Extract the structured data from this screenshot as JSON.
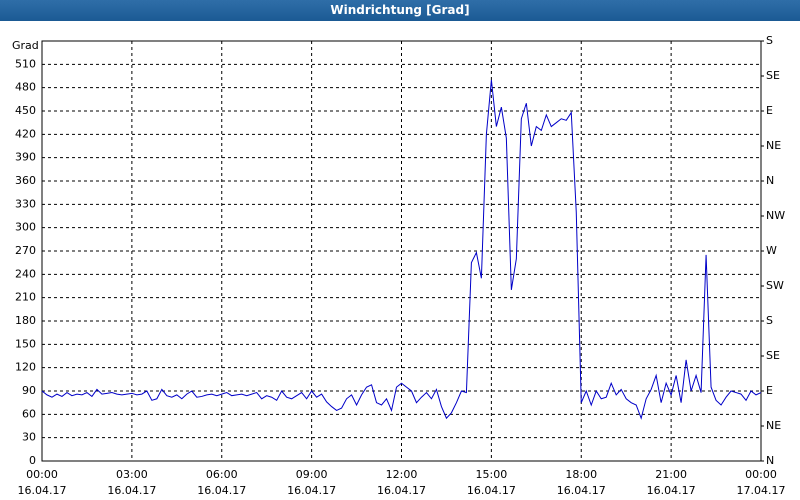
{
  "chart_data": {
    "type": "line",
    "title": "Windrichtung [Grad]",
    "y_label": "Grad",
    "x": [
      0,
      10,
      20,
      30,
      40,
      50,
      60,
      70,
      80,
      90,
      100,
      110,
      120,
      130,
      140,
      150,
      160,
      170,
      180,
      190,
      200,
      210,
      220,
      230,
      240,
      250,
      260,
      270,
      280,
      290,
      300,
      310,
      320,
      330,
      340,
      350,
      360,
      370,
      380,
      390,
      400,
      410,
      420,
      430,
      440,
      450,
      460,
      470,
      480,
      490,
      500,
      510,
      520,
      530,
      540,
      550,
      560,
      570,
      580,
      590,
      600,
      610,
      620,
      630,
      640,
      650,
      660,
      670,
      680,
      690,
      700,
      710,
      720,
      730,
      740,
      750,
      760,
      770,
      780,
      790,
      800,
      810,
      820,
      830,
      840,
      850,
      860,
      870,
      880,
      890,
      900,
      910,
      920,
      930,
      940,
      950,
      960,
      970,
      980,
      990,
      1000,
      1010,
      1020,
      1030,
      1040,
      1050,
      1060,
      1070,
      1080,
      1090,
      1100,
      1110,
      1120,
      1130,
      1140,
      1150,
      1160,
      1170,
      1180,
      1190,
      1200,
      1210,
      1220,
      1230,
      1240,
      1250,
      1260,
      1270,
      1280,
      1290,
      1300,
      1310,
      1320,
      1330,
      1340,
      1350,
      1360,
      1370,
      1380,
      1390,
      1400,
      1410,
      1420,
      1430,
      1440
    ],
    "series": [
      {
        "name": "Windrichtung",
        "color": "#0000c8",
        "values": [
          90,
          85,
          82,
          86,
          83,
          88,
          84,
          86,
          85,
          88,
          83,
          92,
          86,
          87,
          88,
          86,
          85,
          86,
          87,
          85,
          86,
          90,
          78,
          80,
          92,
          84,
          82,
          85,
          80,
          86,
          90,
          82,
          83,
          85,
          86,
          84,
          86,
          88,
          84,
          85,
          86,
          84,
          86,
          88,
          80,
          84,
          82,
          78,
          90,
          82,
          80,
          84,
          88,
          80,
          90,
          82,
          86,
          76,
          70,
          65,
          68,
          80,
          85,
          72,
          85,
          95,
          98,
          75,
          72,
          80,
          65,
          95,
          100,
          95,
          90,
          75,
          82,
          88,
          80,
          92,
          70,
          55,
          62,
          75,
          90,
          88,
          255,
          268,
          235,
          420,
          490,
          430,
          455,
          415,
          220,
          260,
          440,
          460,
          405,
          430,
          425,
          445,
          430,
          435,
          440,
          438,
          448,
          320,
          75,
          90,
          72,
          90,
          80,
          82,
          100,
          85,
          92,
          80,
          75,
          72,
          55,
          80,
          92,
          110,
          75,
          100,
          85,
          110,
          75,
          130,
          90,
          110,
          88,
          265,
          95,
          78,
          72,
          82,
          90,
          88,
          86,
          78,
          90,
          85,
          88
        ]
      }
    ],
    "xlim": [
      0,
      1440
    ],
    "xticks": [
      {
        "value": 0,
        "label": "00:00",
        "date": "16.04.17"
      },
      {
        "value": 180,
        "label": "03:00",
        "date": "16.04.17"
      },
      {
        "value": 360,
        "label": "06:00",
        "date": "16.04.17"
      },
      {
        "value": 540,
        "label": "09:00",
        "date": "16.04.17"
      },
      {
        "value": 720,
        "label": "12:00",
        "date": "16.04.17"
      },
      {
        "value": 900,
        "label": "15:00",
        "date": "16.04.17"
      },
      {
        "value": 1080,
        "label": "18:00",
        "date": "16.04.17"
      },
      {
        "value": 1260,
        "label": "21:00",
        "date": "16.04.17"
      },
      {
        "value": 1440,
        "label": "00:00",
        "date": "17.04.17"
      }
    ],
    "ylim": [
      0,
      540
    ],
    "yticks": [
      0,
      30,
      60,
      90,
      120,
      150,
      180,
      210,
      240,
      270,
      300,
      330,
      360,
      390,
      420,
      450,
      480,
      510
    ],
    "y2lim": [
      0,
      540
    ],
    "y2ticks": [
      {
        "value": 0,
        "label": "N"
      },
      {
        "value": 45,
        "label": "NE"
      },
      {
        "value": 90,
        "label": "E"
      },
      {
        "value": 135,
        "label": "SE"
      },
      {
        "value": 180,
        "label": "S"
      },
      {
        "value": 225,
        "label": "SW"
      },
      {
        "value": 270,
        "label": "W"
      },
      {
        "value": 315,
        "label": "NW"
      },
      {
        "value": 360,
        "label": "N"
      },
      {
        "value": 405,
        "label": "NE"
      },
      {
        "value": 450,
        "label": "E"
      },
      {
        "value": 495,
        "label": "SE"
      },
      {
        "value": 540,
        "label": "S"
      }
    ],
    "grid": true
  }
}
